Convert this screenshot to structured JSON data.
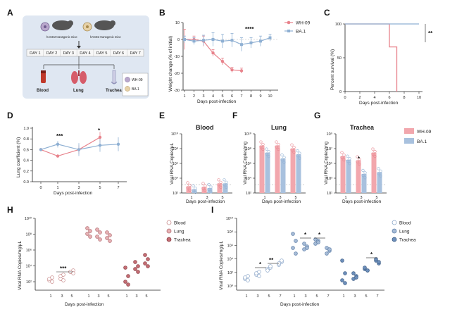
{
  "colors": {
    "wh09": "#e8838c",
    "ba1": "#8fb0d3",
    "blood": "#ffffff",
    "lung": "#c98c8c",
    "trachea": "#d98c92",
    "lungI": "#8ba6c9",
    "tracheaI": "#9fb7d6",
    "bar_red": "#f2a7ad",
    "bar_blue": "#a8c1de"
  },
  "panel_labels": [
    "A",
    "B",
    "C",
    "D",
    "E",
    "F",
    "G",
    "H",
    "I"
  ],
  "panelA": {
    "mouse1_label": "hACE2 transgenic mice",
    "mouse2_label": "hACE2 transgenic mice",
    "days": [
      "DAY 1",
      "DAY 2",
      "DAY 3",
      "DAY 4",
      "DAY 5",
      "DAY 6",
      "DAY 7"
    ],
    "samples": [
      "Blood",
      "Lung",
      "Trachea"
    ],
    "legend": [
      "WH-09",
      "BA.1"
    ]
  },
  "chart_data": [
    {
      "panel": "B",
      "type": "line",
      "ylabel": "Weight change (% of initial)",
      "xlabel": "Days post-infection",
      "ylim": [
        -30,
        10
      ],
      "yticks": [
        -30,
        -20,
        -10,
        0,
        10
      ],
      "xticks": [
        1,
        2,
        3,
        4,
        5,
        6,
        7,
        8,
        9,
        10
      ],
      "series": [
        {
          "name": "WH-09",
          "x": [
            1,
            2,
            3,
            4,
            5,
            6,
            7
          ],
          "y": [
            0,
            0,
            -1,
            -8,
            -13,
            -18,
            -18.5
          ],
          "err": [
            6,
            2,
            3,
            2,
            2,
            1.5,
            1.5
          ]
        },
        {
          "name": "BA.1",
          "x": [
            1,
            2,
            3,
            4,
            5,
            6,
            7,
            8,
            9,
            10
          ],
          "y": [
            0,
            -1,
            -0.5,
            0,
            -1,
            -0.5,
            -3,
            -2,
            -1,
            1
          ],
          "err": [
            2,
            2,
            3,
            4,
            4,
            4,
            4,
            3,
            3,
            2
          ]
        }
      ],
      "annotation": "****"
    },
    {
      "panel": "C",
      "type": "line",
      "ylabel": "Percent survival (%)",
      "xlabel": "Days post-infection",
      "ylim": [
        0,
        100
      ],
      "yticks": [
        0,
        50,
        100
      ],
      "xticks": [
        0,
        2,
        4,
        6,
        8,
        10
      ],
      "series": [
        {
          "name": "WH-09",
          "x": [
            0,
            6,
            6,
            6.5,
            6.5,
            7,
            7
          ],
          "y": [
            100,
            100,
            66,
            66,
            66,
            66,
            0
          ]
        },
        {
          "name": "BA.1",
          "x": [
            0,
            10
          ],
          "y": [
            100,
            100
          ]
        }
      ],
      "annotation": "**"
    },
    {
      "panel": "D",
      "type": "line",
      "ylabel": "Lung coefficient (%)",
      "xlabel": "Days post-infection",
      "ylim": [
        0.0,
        1.0
      ],
      "yticks": [
        "0.0",
        "0.2",
        "0.4",
        "0.6",
        "0.8",
        "1.0"
      ],
      "xticks": [
        0,
        1,
        3,
        5,
        7
      ],
      "series": [
        {
          "name": "WH-09",
          "x": [
            0,
            1,
            3,
            5
          ],
          "y": [
            0.6,
            0.48,
            0.6,
            0.83
          ],
          "err": [
            0.03,
            0.03,
            0.08,
            0.1
          ]
        },
        {
          "name": "BA.1",
          "x": [
            0,
            1,
            3,
            5,
            7
          ],
          "y": [
            0.6,
            0.7,
            0.6,
            0.68,
            0.7
          ],
          "err": [
            0.03,
            0.06,
            0.12,
            0.12,
            0.13
          ]
        }
      ],
      "annotations": [
        {
          "x": 1,
          "text": "***"
        },
        {
          "x": 5,
          "text": "*"
        }
      ]
    },
    {
      "panel": "E",
      "title": "Blood",
      "type": "bar",
      "ylabel": "Viral RNA Copies/μL",
      "xlabel": "Days post-infection",
      "categories": [
        "1",
        "3",
        "5"
      ],
      "log_scale": true,
      "yticks": [
        "10²",
        "10⁴",
        "10⁶",
        "10⁸",
        "10¹⁰"
      ],
      "series": [
        {
          "name": "WH-09",
          "values": [
            1.1,
            1.0,
            1.6
          ]
        },
        {
          "name": "BA.1",
          "values": [
            0.6,
            0.8,
            1.6
          ]
        }
      ]
    },
    {
      "panel": "F",
      "title": "Lung",
      "type": "bar",
      "ylabel": "Viral RNA Copies/mg",
      "xlabel": "Days post-infection",
      "categories": [
        "1",
        "3",
        "5"
      ],
      "log_scale": true,
      "yticks": [
        "10²",
        "10⁴",
        "10⁶",
        "10⁸",
        "10¹⁰"
      ],
      "series": [
        {
          "name": "WH-09",
          "values": [
            8.0,
            8.0,
            7.5
          ]
        },
        {
          "name": "BA.1",
          "values": [
            6.8,
            5.8,
            6.5
          ]
        }
      ]
    },
    {
      "panel": "G",
      "title": "Trachea",
      "type": "bar",
      "ylabel": "Viral RNA Copies/mg",
      "xlabel": "Days post-infection",
      "categories": [
        "1",
        "3",
        "5"
      ],
      "log_scale": true,
      "yticks": [
        "10¹",
        "10³",
        "10⁵",
        "10⁷",
        "10⁹"
      ],
      "series": [
        {
          "name": "WH-09",
          "values": [
            6.2,
            5.5,
            6.8
          ]
        },
        {
          "name": "BA.1",
          "values": [
            5.6,
            3.2,
            3.5
          ]
        }
      ],
      "legend": [
        "WH-09",
        "BA.1"
      ],
      "annotation": "*"
    },
    {
      "panel": "H",
      "type": "scatter",
      "ylabel": "Viral RNA Copies/mg/μL",
      "xlabel": "Days post-infection",
      "categories": [
        "1",
        "3",
        "5",
        "1",
        "3",
        "5",
        "1",
        "3",
        "5"
      ],
      "yticks": [
        "10²",
        "10⁴",
        "10⁶",
        "10⁸",
        "10¹⁰"
      ],
      "legend": [
        "Blood",
        "Lung",
        "Trachea"
      ],
      "annotation": "***"
    },
    {
      "panel": "I",
      "type": "scatter",
      "ylabel": "Viral RNA Copies/mg/μL",
      "xlabel": "Days post-infection",
      "categories": [
        "1",
        "3",
        "5",
        "7",
        "1",
        "3",
        "5",
        "7",
        "1",
        "3",
        "5",
        "7"
      ],
      "yticks": [
        "10⁰",
        "10²",
        "10⁴",
        "10⁶",
        "10⁸",
        "10¹⁰"
      ],
      "legend": [
        "Blood",
        "Lung",
        "Trachea"
      ],
      "annotations": [
        "*",
        "**",
        "*",
        "*",
        "*"
      ]
    }
  ]
}
